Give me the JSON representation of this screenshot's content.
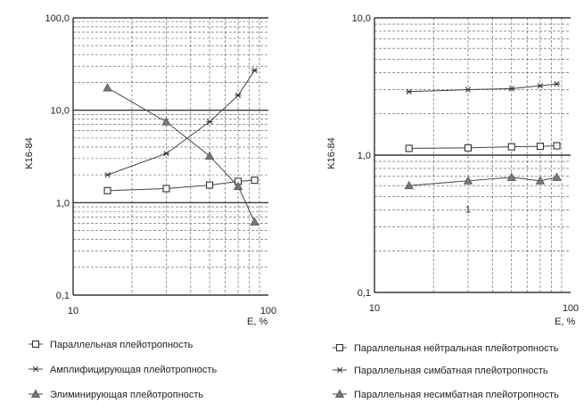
{
  "chart_data": [
    {
      "type": "line",
      "xscale": "log",
      "yscale": "log",
      "xlim": [
        10,
        100
      ],
      "ylim": [
        0.1,
        100
      ],
      "x_ticks": [
        "10",
        "100"
      ],
      "y_ticks": [
        "0,1",
        "1,0",
        "10,0",
        "100,0"
      ],
      "xlabel": "E, %",
      "ylabel": "K16-84",
      "grid": true,
      "legend_position": "bottom",
      "series": [
        {
          "name": "Параллельная плейотропность",
          "marker": "square-open",
          "x": [
            15,
            30,
            50,
            70,
            85
          ],
          "y": [
            1.35,
            1.42,
            1.55,
            1.7,
            1.75
          ]
        },
        {
          "name": "Амплифицирующая плейотропность",
          "marker": "asterisk",
          "x": [
            15,
            30,
            50,
            70,
            85
          ],
          "y": [
            2.0,
            3.4,
            7.5,
            14.5,
            27
          ]
        },
        {
          "name": "Элиминирующая плейотропность",
          "marker": "triangle-filled",
          "x": [
            15,
            30,
            50,
            70,
            85
          ],
          "y": [
            17.5,
            7.5,
            3.2,
            1.5,
            0.62
          ]
        }
      ]
    },
    {
      "type": "line",
      "xscale": "log",
      "yscale": "log",
      "xlim": [
        10,
        100
      ],
      "ylim": [
        0.1,
        10
      ],
      "x_ticks": [
        "10",
        "100"
      ],
      "y_ticks": [
        "0,1",
        "1,0",
        "10,0"
      ],
      "xlabel": "E, %",
      "ylabel": "K16-84",
      "grid": true,
      "legend_position": "bottom",
      "annotations": [
        {
          "text": "1",
          "x": 30,
          "y": 0.38
        }
      ],
      "series": [
        {
          "name": "Параллельная нейтральная плейотропность",
          "marker": "square-open",
          "x": [
            15,
            30,
            50,
            70,
            85
          ],
          "y": [
            1.12,
            1.13,
            1.15,
            1.16,
            1.17
          ]
        },
        {
          "name": "Параллельная симбатная плейотропность",
          "marker": "asterisk",
          "x": [
            15,
            30,
            50,
            70,
            85
          ],
          "y": [
            2.9,
            3.0,
            3.05,
            3.2,
            3.3
          ]
        },
        {
          "name": "Параллельная несимбатная плейотропность",
          "marker": "triangle-filled",
          "x": [
            15,
            30,
            50,
            70,
            85
          ],
          "y": [
            0.6,
            0.65,
            0.69,
            0.65,
            0.69
          ]
        }
      ]
    }
  ]
}
